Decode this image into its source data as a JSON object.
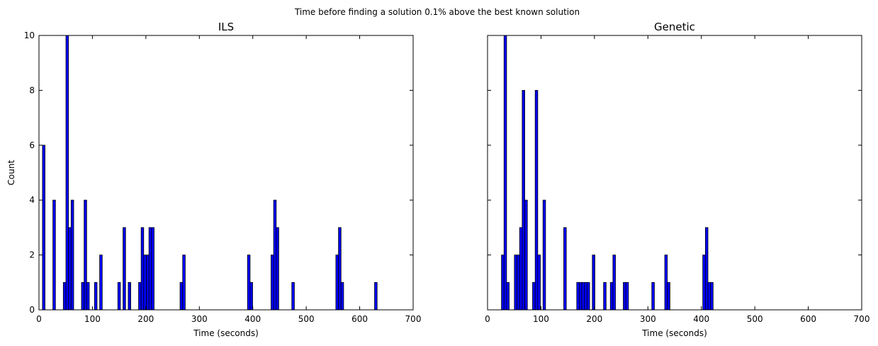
{
  "figure": {
    "suptitle": "Time before finding a solution 0.1% above the best known solution"
  },
  "chart_data": [
    {
      "type": "bar",
      "title": "ILS",
      "xlabel": "Time (seconds)",
      "ylabel": "Count",
      "xlim": [
        0,
        700
      ],
      "ylim": [
        0,
        10
      ],
      "xticks": [
        0,
        100,
        200,
        300,
        400,
        500,
        600,
        700
      ],
      "yticks": [
        0,
        2,
        4,
        6,
        8,
        10
      ],
      "bar_color": "#0000ff",
      "edge_color": "#000000",
      "bin_width": 4.85,
      "bins": [
        {
          "x": 6.5,
          "count": 6
        },
        {
          "x": 26,
          "count": 4
        },
        {
          "x": 45.5,
          "count": 1
        },
        {
          "x": 50.4,
          "count": 10
        },
        {
          "x": 55.2,
          "count": 3
        },
        {
          "x": 60.1,
          "count": 4
        },
        {
          "x": 79.5,
          "count": 1
        },
        {
          "x": 84.4,
          "count": 4
        },
        {
          "x": 89.3,
          "count": 1
        },
        {
          "x": 103.8,
          "count": 1
        },
        {
          "x": 113.5,
          "count": 2
        },
        {
          "x": 147.5,
          "count": 1
        },
        {
          "x": 157.2,
          "count": 3
        },
        {
          "x": 166.9,
          "count": 1
        },
        {
          "x": 186.3,
          "count": 1
        },
        {
          "x": 191.1,
          "count": 3
        },
        {
          "x": 196,
          "count": 2
        },
        {
          "x": 200.9,
          "count": 2
        },
        {
          "x": 205.7,
          "count": 3
        },
        {
          "x": 210.6,
          "count": 3
        },
        {
          "x": 263.9,
          "count": 1
        },
        {
          "x": 268.8,
          "count": 2
        },
        {
          "x": 390.1,
          "count": 2
        },
        {
          "x": 394.9,
          "count": 1
        },
        {
          "x": 434.1,
          "count": 2
        },
        {
          "x": 439,
          "count": 4
        },
        {
          "x": 443.8,
          "count": 3
        },
        {
          "x": 473,
          "count": 1
        },
        {
          "x": 555.4,
          "count": 2
        },
        {
          "x": 560.3,
          "count": 3
        },
        {
          "x": 565.1,
          "count": 1
        },
        {
          "x": 627.8,
          "count": 1
        }
      ]
    },
    {
      "type": "bar",
      "title": "Genetic",
      "xlabel": "Time (seconds)",
      "ylabel": "",
      "xlim": [
        0,
        700
      ],
      "ylim": [
        0,
        10
      ],
      "xticks": [
        0,
        100,
        200,
        300,
        400,
        500,
        600,
        700
      ],
      "yticks": [
        0,
        2,
        4,
        6,
        8,
        10
      ],
      "bar_color": "#0000ff",
      "edge_color": "#000000",
      "bin_width": 4.85,
      "bins": [
        {
          "x": 26,
          "count": 2
        },
        {
          "x": 30.8,
          "count": 10
        },
        {
          "x": 35.7,
          "count": 1
        },
        {
          "x": 50.2,
          "count": 2
        },
        {
          "x": 55.1,
          "count": 2
        },
        {
          "x": 60,
          "count": 3
        },
        {
          "x": 64.8,
          "count": 8
        },
        {
          "x": 69.7,
          "count": 4
        },
        {
          "x": 84.2,
          "count": 1
        },
        {
          "x": 89.1,
          "count": 8
        },
        {
          "x": 94,
          "count": 2
        },
        {
          "x": 103.7,
          "count": 4
        },
        {
          "x": 142.5,
          "count": 3
        },
        {
          "x": 166.8,
          "count": 1
        },
        {
          "x": 171.6,
          "count": 1
        },
        {
          "x": 176.5,
          "count": 1
        },
        {
          "x": 181.3,
          "count": 1
        },
        {
          "x": 186.2,
          "count": 1
        },
        {
          "x": 196,
          "count": 2
        },
        {
          "x": 217,
          "count": 1
        },
        {
          "x": 229.7,
          "count": 1
        },
        {
          "x": 234.5,
          "count": 2
        },
        {
          "x": 253.9,
          "count": 1
        },
        {
          "x": 258.8,
          "count": 1
        },
        {
          "x": 307.3,
          "count": 1
        },
        {
          "x": 331.5,
          "count": 2
        },
        {
          "x": 336.4,
          "count": 1
        },
        {
          "x": 402.6,
          "count": 2
        },
        {
          "x": 407.5,
          "count": 3
        },
        {
          "x": 412.4,
          "count": 1
        },
        {
          "x": 417.2,
          "count": 1
        }
      ]
    }
  ]
}
